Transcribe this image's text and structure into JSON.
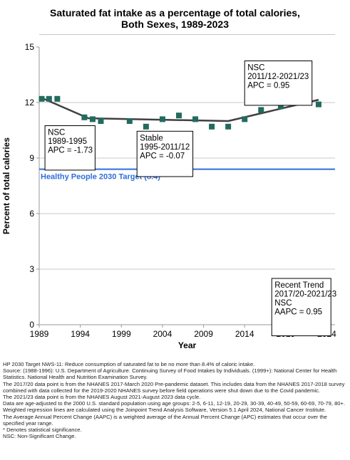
{
  "title": {
    "line1": "Saturated fat intake as a percentage of total calories,",
    "line2": "Both Sexes,  1989-2023"
  },
  "chart_data": {
    "type": "scatter",
    "xlabel": "Year",
    "ylabel": "Percent of total calories",
    "xlim": [
      1989,
      2025
    ],
    "ylim": [
      0,
      15
    ],
    "xticks": [
      1989,
      1994,
      1999,
      2004,
      2009,
      2014,
      2019,
      2024
    ],
    "yticks": [
      0,
      3,
      6,
      9,
      12,
      15
    ],
    "grid": "horizontal",
    "colors": {
      "points": "#236b5e",
      "trend": "#404040",
      "target": "#2f6ed8",
      "grid": "#c8c8c8"
    },
    "points": [
      {
        "x": 1989.3,
        "y": 12.2
      },
      {
        "x": 1990.2,
        "y": 12.2
      },
      {
        "x": 1991.2,
        "y": 12.2
      },
      {
        "x": 1994.5,
        "y": 11.2
      },
      {
        "x": 1995.5,
        "y": 11.1
      },
      {
        "x": 1996.5,
        "y": 11.0
      },
      {
        "x": 2000.0,
        "y": 11.0
      },
      {
        "x": 2002.0,
        "y": 10.7
      },
      {
        "x": 2004.0,
        "y": 11.1
      },
      {
        "x": 2006.0,
        "y": 11.3
      },
      {
        "x": 2008.0,
        "y": 11.1
      },
      {
        "x": 2010.0,
        "y": 10.7
      },
      {
        "x": 2012.0,
        "y": 10.7
      },
      {
        "x": 2014.0,
        "y": 11.1
      },
      {
        "x": 2016.0,
        "y": 11.6
      },
      {
        "x": 2018.4,
        "y": 11.8
      },
      {
        "x": 2023.0,
        "y": 11.9
      }
    ],
    "trend": [
      {
        "x": 1989.3,
        "y": 12.25
      },
      {
        "x": 1995.0,
        "y": 11.15
      },
      {
        "x": 2012.0,
        "y": 11.0
      },
      {
        "x": 2023.0,
        "y": 12.15
      }
    ],
    "target": {
      "value": 8.4,
      "label": "Healthy People 2030 Target (8.4)"
    },
    "annotations": [
      {
        "lines": [
          "NSC",
          "1989-1995",
          "APC = -1.73"
        ],
        "anchor_x": 1989.7,
        "anchor_y": 10.75,
        "width_years": 6.1,
        "height_units": 2.4
      },
      {
        "lines": [
          "Stable",
          "1995-2011/12",
          "APC = -0.07"
        ],
        "anchor_x": 2000.9,
        "anchor_y": 10.45,
        "width_years": 6.8,
        "height_units": 2.45
      },
      {
        "lines": [
          "NSC",
          "2011/12-2021/23",
          "APC =  0.95"
        ],
        "anchor_x": 2014.0,
        "anchor_y": 14.25,
        "width_years": 8.2,
        "height_units": 2.4
      },
      {
        "lines": [
          "Recent Trend",
          "2017/20-2021/23",
          "NSC",
          "AAPC =  0.95"
        ],
        "anchor_x": 2017.3,
        "anchor_y": 2.5,
        "width_years": 7.2,
        "height_units": 3.1
      }
    ]
  },
  "footnotes": [
    "HP 2030 Target NWS-11: Reduce consumption of saturated fat to be no more than 8.4% of caloric intake.",
    "Source: (1988-1996): U.S. Department of Agriculture. Continuing Survey of Food Intakes by Individuals. (1999+): National Center for Health Statistics. National Health and Nutrition Examination Survey.",
    "The 2017/20 data point is from the NHANES 2017-March 2020 Pre-pandemic dataset. This includes data from the NHANES 2017-2018 survey combined with data collected for the 2019-2020 NHANES survey before field operations were shut down due to the Covid pandemic.",
    "The 2021/23 data point is from the NHANES August 2021-August 2023 data cycle.",
    "Data are age-adjusted to the 2000 U.S. standard population using age groups: 2-5, 6-11, 12-19, 20-29, 30-39, 40-49, 50-59, 60-69, 70-79, 80+.",
    "Weighted regression lines are calculated using the Joinpoint Trend Analysis Software, Version 5.1 April 2024, National Cancer Institute.",
    "The Average Annual Percent Change (AAPC) is a weighted average of the Annual Percent Change (APC) estimates that occur over the specified year range.",
    "* Denotes statistical significance.",
    "NSC: Non-Significant Change."
  ]
}
